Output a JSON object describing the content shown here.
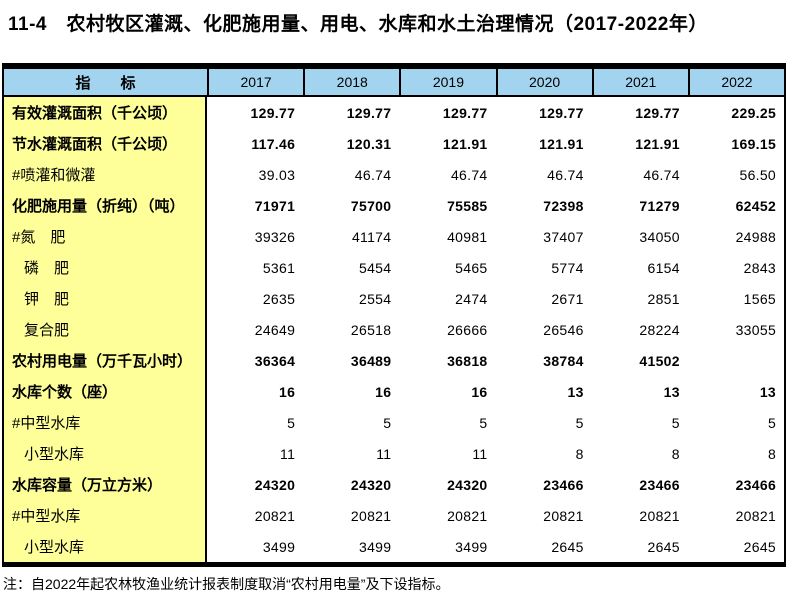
{
  "title": "11-4　农村牧区灌溉、化肥施用量、用电、水库和水土治理情况（2017-2022年）",
  "table": {
    "header": {
      "indicator": "指　　标",
      "years": [
        "2017",
        "2018",
        "2019",
        "2020",
        "2021",
        "2022"
      ]
    },
    "rows": [
      {
        "label": "有效灌溉面积（千公顷）",
        "bold": true,
        "indent": 0,
        "values": [
          "129.77",
          "129.77",
          "129.77",
          "129.77",
          "129.77",
          "229.25"
        ]
      },
      {
        "label": "节水灌溉面积（千公顷）",
        "bold": true,
        "indent": 0,
        "values": [
          "117.46",
          "120.31",
          "121.91",
          "121.91",
          "121.91",
          "169.15"
        ]
      },
      {
        "label": "#喷灌和微灌",
        "bold": false,
        "indent": 0,
        "values": [
          "39.03",
          "46.74",
          "46.74",
          "46.74",
          "46.74",
          "56.50"
        ]
      },
      {
        "label": "化肥施用量（折纯）（吨）",
        "bold": true,
        "indent": 0,
        "values": [
          "71971",
          "75700",
          "75585",
          "72398",
          "71279",
          "62452"
        ]
      },
      {
        "label": "#氮　肥",
        "bold": false,
        "indent": 0,
        "values": [
          "39326",
          "41174",
          "40981",
          "37407",
          "34050",
          "24988"
        ]
      },
      {
        "label": "磷　肥",
        "bold": false,
        "indent": 1,
        "values": [
          "5361",
          "5454",
          "5465",
          "5774",
          "6154",
          "2843"
        ]
      },
      {
        "label": "钾　肥",
        "bold": false,
        "indent": 1,
        "values": [
          "2635",
          "2554",
          "2474",
          "2671",
          "2851",
          "1565"
        ]
      },
      {
        "label": "复合肥",
        "bold": false,
        "indent": 1,
        "values": [
          "24649",
          "26518",
          "26666",
          "26546",
          "28224",
          "33055"
        ]
      },
      {
        "label": "农村用电量（万千瓦小时）",
        "bold": true,
        "indent": 0,
        "values": [
          "36364",
          "36489",
          "36818",
          "38784",
          "41502",
          ""
        ]
      },
      {
        "label": "水库个数（座）",
        "bold": true,
        "indent": 0,
        "values": [
          "16",
          "16",
          "16",
          "13",
          "13",
          "13"
        ]
      },
      {
        "label": "#中型水库",
        "bold": false,
        "indent": 0,
        "values": [
          "5",
          "5",
          "5",
          "5",
          "5",
          "5"
        ]
      },
      {
        "label": "小型水库",
        "bold": false,
        "indent": 1,
        "values": [
          "11",
          "11",
          "11",
          "8",
          "8",
          "8"
        ]
      },
      {
        "label": "水库容量（万立方米）",
        "bold": true,
        "indent": 0,
        "values": [
          "24320",
          "24320",
          "24320",
          "23466",
          "23466",
          "23466"
        ]
      },
      {
        "label": "#中型水库",
        "bold": false,
        "indent": 0,
        "values": [
          "20821",
          "20821",
          "20821",
          "20821",
          "20821",
          "20821"
        ]
      },
      {
        "label": "小型水库",
        "bold": false,
        "indent": 1,
        "values": [
          "3499",
          "3499",
          "3499",
          "2645",
          "2645",
          "2645"
        ]
      }
    ]
  },
  "note": "注：自2022年起农林牧渔业统计报表制度取消“农村用电量”及下设指标。",
  "colors": {
    "header_bg": "#A2D4F0",
    "indicator_bg": "#FFFF99",
    "border": "#000000"
  }
}
